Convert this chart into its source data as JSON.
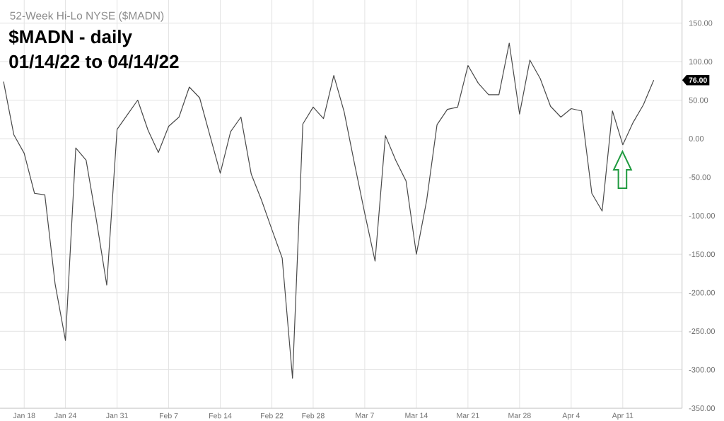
{
  "chart_data": {
    "type": "line",
    "title": "$MADN - daily",
    "subtitle": "01/14/22 to 04/14/22",
    "annotations": [
      "52-Week Hi-Lo NYSE ($MADN)",
      "76.00"
    ],
    "categories": [
      null,
      null,
      "Jan 18",
      null,
      null,
      null,
      "Jan 24",
      null,
      null,
      null,
      null,
      "Jan 31",
      null,
      null,
      null,
      null,
      "Feb 7",
      null,
      null,
      null,
      null,
      "Feb 14",
      null,
      null,
      null,
      null,
      "Feb 22",
      null,
      null,
      null,
      "Feb 28",
      null,
      null,
      null,
      null,
      "Mar 7",
      null,
      null,
      null,
      null,
      "Mar 14",
      null,
      null,
      null,
      null,
      "Mar 21",
      null,
      null,
      null,
      null,
      "Mar 28",
      null,
      null,
      null,
      null,
      "Apr 4",
      null,
      null,
      null,
      null,
      "Apr 11",
      null,
      null,
      null
    ],
    "values": [
      74,
      5,
      -19,
      -71,
      -73,
      -189,
      -262,
      -12,
      -28,
      -106,
      -190,
      12,
      31,
      50,
      11,
      -18,
      16,
      28,
      67,
      53,
      4,
      -45,
      9,
      28,
      -46,
      -80,
      -118,
      -155,
      -311,
      19,
      41,
      26,
      82,
      35,
      -32,
      -97,
      -159,
      4,
      -28,
      -55,
      -150,
      -80,
      18,
      38,
      41,
      95,
      72,
      57,
      57,
      124,
      32,
      102,
      78,
      42,
      28,
      39,
      36,
      -71,
      -94,
      36,
      -8,
      21,
      44,
      76
    ],
    "color": "#4a4a4a",
    "ylim": [
      -350,
      180
    ],
    "yticks": [
      {
        "value": -350,
        "label": "-350.00"
      },
      {
        "value": -300,
        "label": "-300.00"
      },
      {
        "value": -250,
        "label": "-250.00"
      },
      {
        "value": -200,
        "label": "-200.00"
      },
      {
        "value": -150,
        "label": "-150.00"
      },
      {
        "value": -100,
        "label": "-100.00"
      },
      {
        "value": -50,
        "label": "-50.00"
      },
      {
        "value": 0,
        "label": "0.00"
      },
      {
        "value": 50,
        "label": "50.00"
      },
      {
        "value": 100,
        "label": "100.00"
      },
      {
        "value": 150,
        "label": "150.00"
      }
    ],
    "grid": true,
    "marker": "none",
    "line_style": "solid"
  }
}
